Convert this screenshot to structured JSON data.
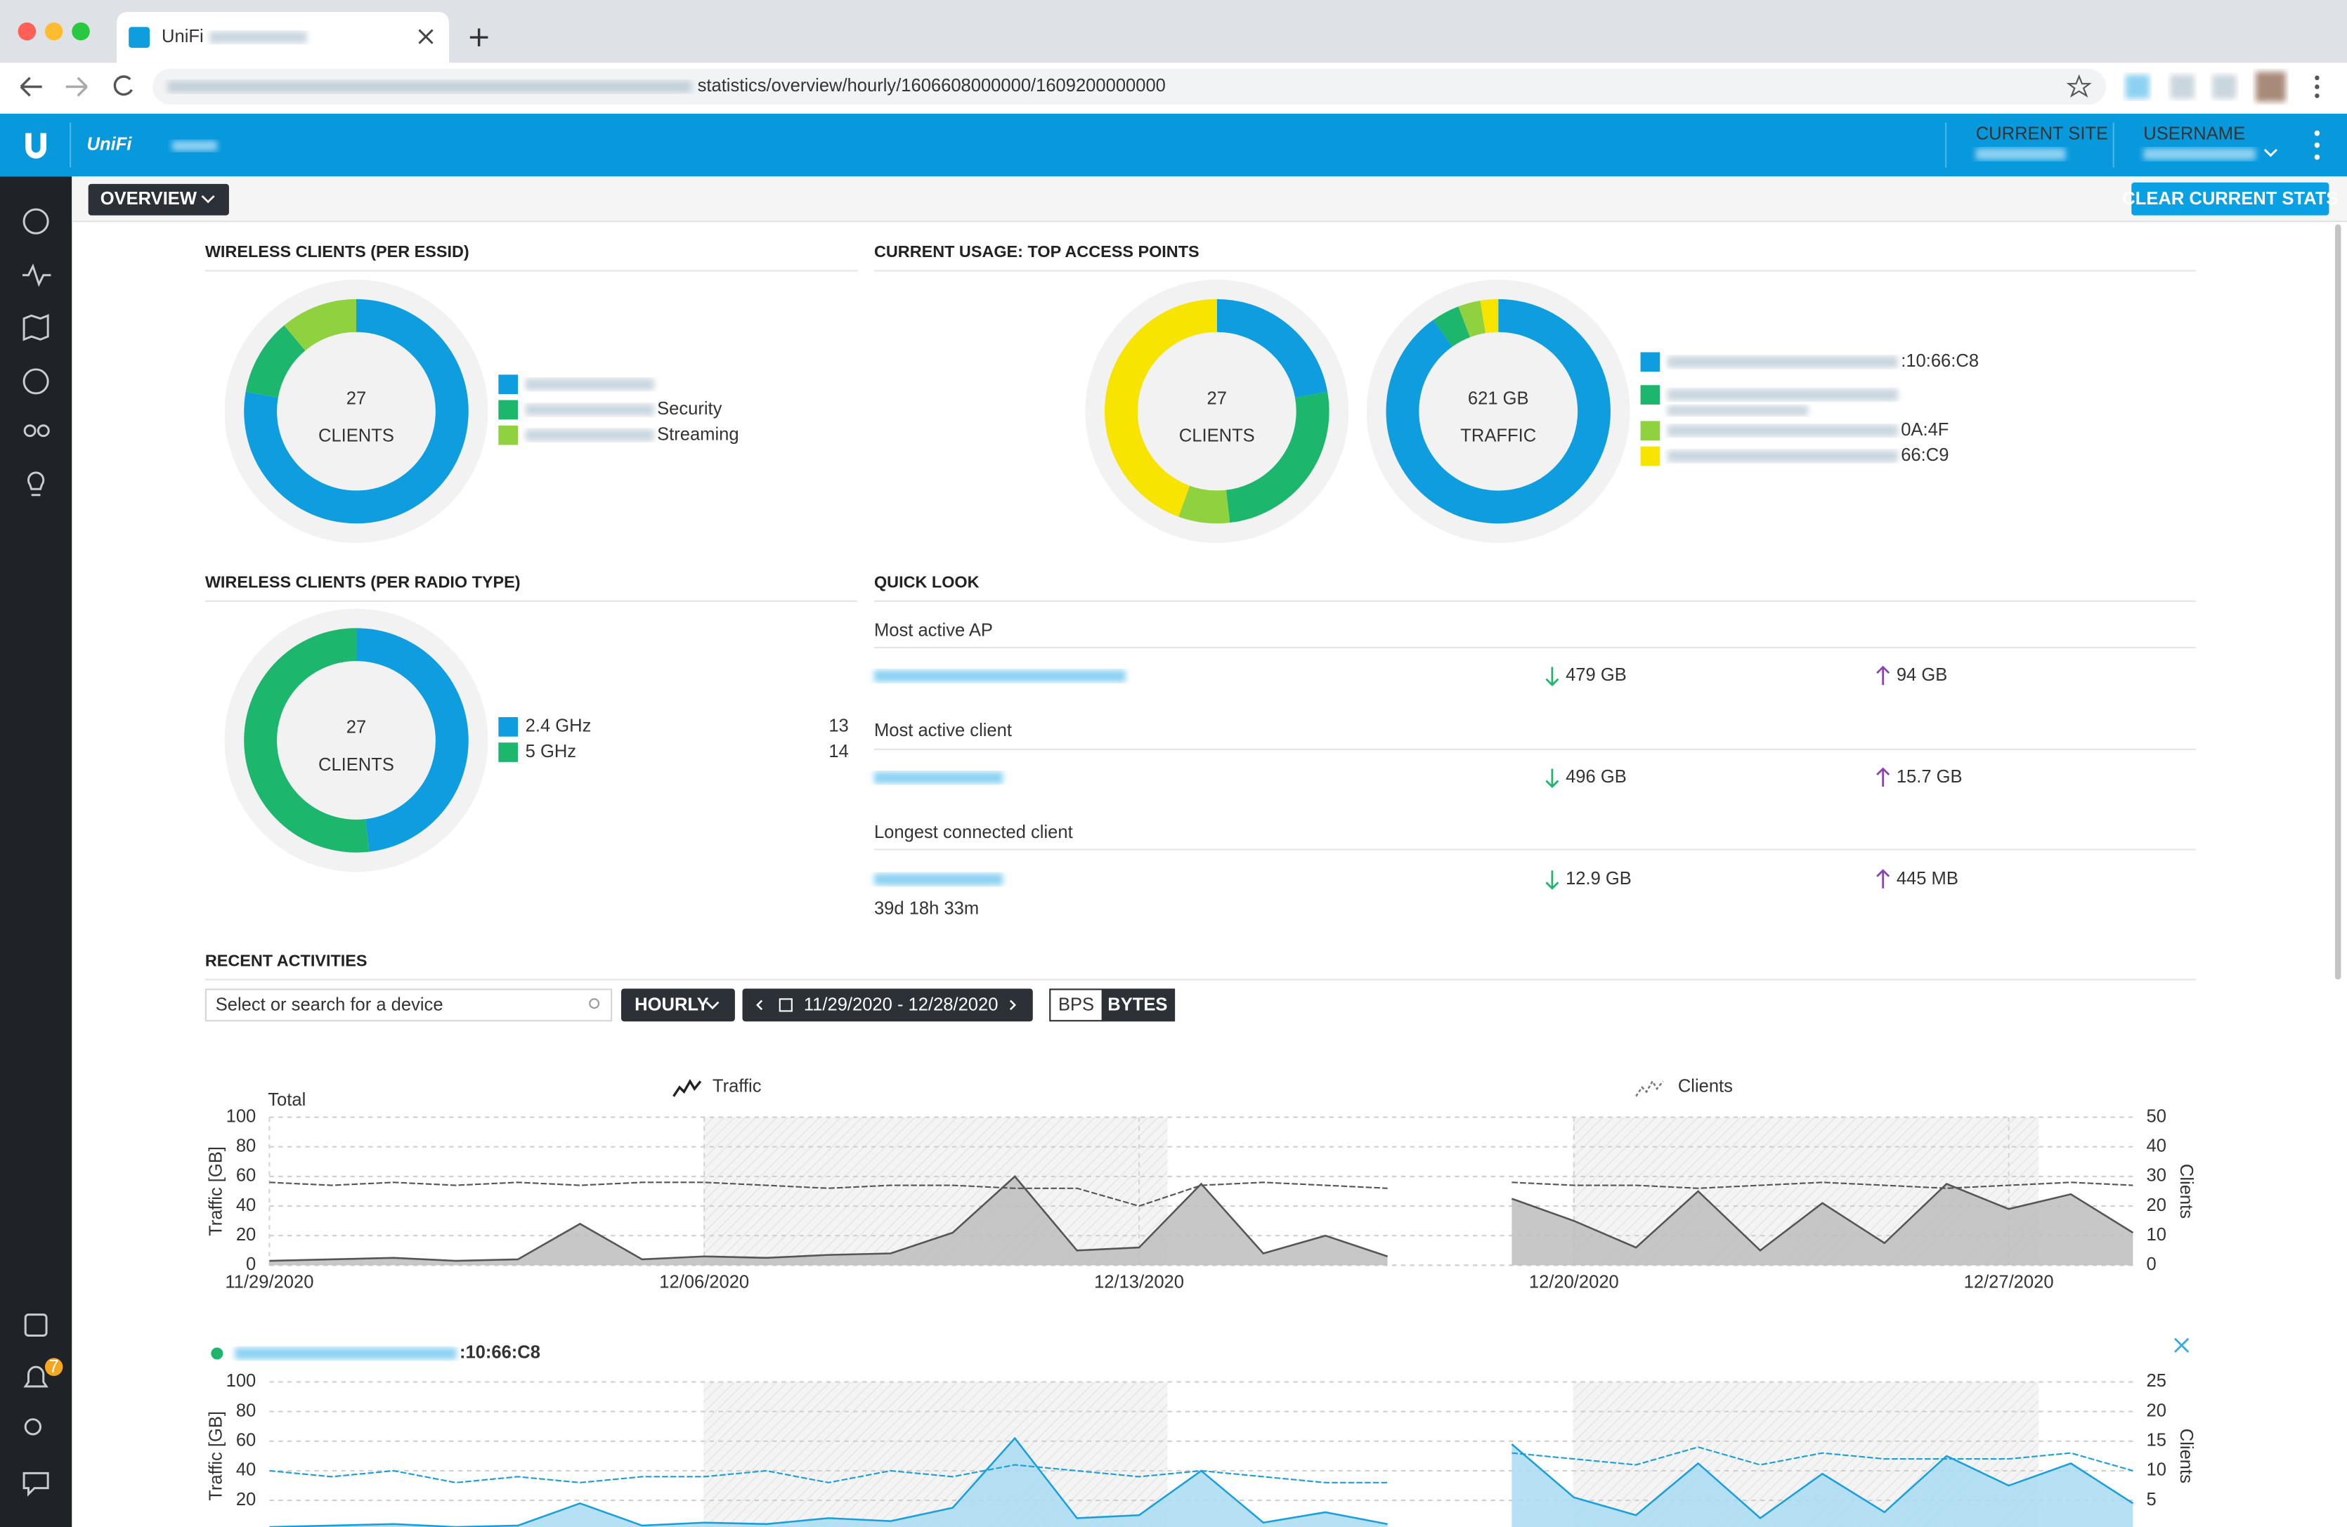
{
  "browser": {
    "tab_title": "UniFi",
    "url": "statistics/overview/hourly/1606608000000/1609200000000"
  },
  "header": {
    "brand": "UniFi",
    "current_site_label": "CURRENT SITE",
    "username_label": "USERNAME"
  },
  "toolbar": {
    "view": "OVERVIEW",
    "clear_button": "CLEAR CURRENT STATS"
  },
  "sidebar": {
    "notification_count": "7"
  },
  "chart_data": [
    {
      "type": "donut",
      "title": "WIRELESS CLIENTS (PER ESSID)",
      "center_value": "27",
      "center_label": "CLIENTS",
      "categories": [
        null,
        "Security",
        "Streaming"
      ],
      "values": [
        21,
        3,
        3
      ],
      "colors": [
        "#0e9ee0",
        "#1cb76c",
        "#8fd13f"
      ]
    },
    {
      "type": "donut",
      "title": "CURRENT USAGE: TOP ACCESS POINTS",
      "center_value": "27",
      "center_label": "CLIENTS",
      "categories": [
        ":10:66:C8",
        null,
        "0A:4F",
        "66:C9"
      ],
      "values": [
        6,
        7,
        2,
        12
      ],
      "colors": [
        "#0e9ee0",
        "#1cb76c",
        "#8fd13f",
        "#f7e400"
      ]
    },
    {
      "type": "donut",
      "center_value": "621 GB",
      "center_label": "TRAFFIC",
      "values": [
        560,
        25,
        20,
        16
      ],
      "colors": [
        "#0e9ee0",
        "#1cb76c",
        "#8fd13f",
        "#f7e400"
      ]
    },
    {
      "type": "donut",
      "title": "WIRELESS CLIENTS (PER RADIO TYPE)",
      "center_value": "27",
      "center_label": "CLIENTS",
      "categories": [
        "2.4 GHz",
        "5 GHz"
      ],
      "values": [
        13,
        14
      ],
      "colors": [
        "#0e9ee0",
        "#1cb76c"
      ],
      "legend_shows_values": true
    },
    {
      "type": "line",
      "title": "Total",
      "ylabel": "Traffic [GB]",
      "y2label": "Clients",
      "grid": true,
      "xlim": [
        0,
        30
      ],
      "xticks": [
        {
          "value": 0,
          "label": "11/29/2020"
        },
        {
          "value": 7,
          "label": "12/06/2020"
        },
        {
          "value": 14,
          "label": "12/13/2020"
        },
        {
          "value": 21,
          "label": "12/20/2020"
        },
        {
          "value": 28,
          "label": "12/27/2020"
        }
      ],
      "ylim": [
        0,
        100
      ],
      "yticks": [
        0,
        20,
        40,
        60,
        80,
        100
      ],
      "y2lim": [
        0,
        50
      ],
      "y2ticks": [
        0,
        10,
        20,
        30,
        40,
        50
      ],
      "series": [
        {
          "name": "Traffic",
          "color": "#555555",
          "fill": "#bdbdbd",
          "values": [
            3,
            4,
            5,
            3,
            4,
            28,
            4,
            6,
            5,
            7,
            8,
            22,
            60,
            10,
            12,
            55,
            8,
            20,
            6,
            null,
            45,
            30,
            12,
            50,
            10,
            42,
            15,
            55,
            38,
            48,
            22
          ]
        },
        {
          "name": "Clients",
          "color": "#555555",
          "axis": "y2",
          "values": [
            28,
            27,
            28,
            27,
            28,
            27,
            28,
            28,
            27,
            26,
            27,
            27,
            26,
            26,
            20,
            27,
            28,
            27,
            26,
            null,
            28,
            27,
            27,
            26,
            27,
            28,
            27,
            26,
            27,
            28,
            27
          ]
        }
      ]
    },
    {
      "type": "line",
      "title": ":10:66:C8",
      "ylabel": "Traffic [GB]",
      "y2label": "Clients",
      "grid": true,
      "xlim": [
        0,
        30
      ],
      "ylim": [
        0,
        100
      ],
      "yticks": [
        20,
        40,
        60,
        80,
        100
      ],
      "y2lim": [
        0,
        25
      ],
      "y2ticks": [
        5,
        10,
        15,
        20,
        25
      ],
      "series": [
        {
          "color": "#1a9fdc",
          "fill": "#a9dcf3",
          "values": [
            2,
            3,
            4,
            2,
            3,
            18,
            3,
            5,
            4,
            8,
            6,
            15,
            62,
            8,
            10,
            40,
            5,
            12,
            4,
            null,
            58,
            22,
            10,
            45,
            8,
            38,
            12,
            50,
            30,
            45,
            18
          ]
        },
        {
          "color": "#1a9fdc",
          "axis": "y2",
          "values": [
            10,
            9,
            10,
            8,
            9,
            8,
            9,
            9,
            10,
            8,
            10,
            9,
            11,
            10,
            9,
            10,
            9,
            8,
            8,
            null,
            13,
            12,
            11,
            14,
            11,
            13,
            12,
            12,
            12,
            13,
            10
          ]
        }
      ]
    }
  ],
  "quick_look": {
    "title": "QUICK LOOK",
    "rows": [
      {
        "label": "Most active AP",
        "download": "479 GB",
        "upload": "94 GB"
      },
      {
        "label": "Most active client",
        "download": "496 GB",
        "upload": "15.7 GB"
      },
      {
        "label": "Longest connected client",
        "download": "12.9 GB",
        "upload": "445 MB",
        "duration": "39d 18h 33m"
      }
    ]
  },
  "recent_activities": {
    "title": "RECENT ACTIVITIES",
    "search_placeholder": "Select or search for a device",
    "interval": "HOURLY",
    "date_range": "11/29/2020 - 12/28/2020",
    "units": [
      "BPS",
      "BYTES"
    ]
  }
}
